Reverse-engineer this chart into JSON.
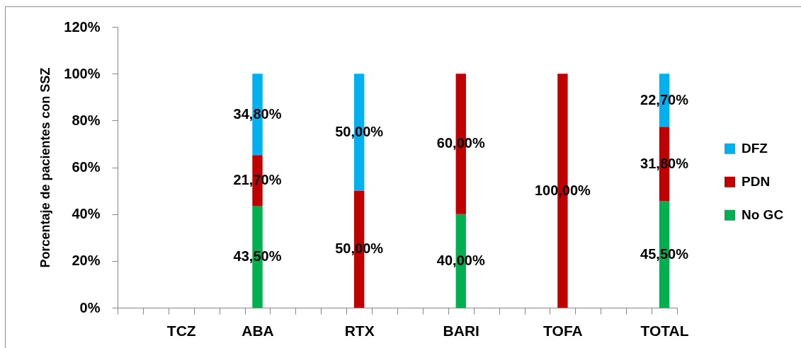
{
  "chart_data": {
    "type": "bar",
    "stacked": true,
    "ylabel": "Porcentaje de pacientes con SSZ",
    "categories": [
      null,
      null,
      "TCZ",
      null,
      null,
      "ABA",
      null,
      null,
      null,
      "RTX",
      null,
      null,
      null,
      "BARI",
      null,
      null,
      null,
      "TOFA",
      null,
      null,
      null,
      "TOTAL"
    ],
    "series": [
      {
        "name": "No GC",
        "color": "#00b050",
        "values": [
          null,
          null,
          null,
          null,
          null,
          43.5,
          null,
          null,
          null,
          null,
          null,
          null,
          null,
          40,
          null,
          null,
          null,
          null,
          null,
          null,
          null,
          45.5
        ],
        "value_labels": [
          null,
          null,
          null,
          null,
          null,
          "43,50%",
          null,
          null,
          null,
          null,
          null,
          null,
          null,
          "40,00%",
          null,
          null,
          null,
          null,
          null,
          null,
          null,
          "45,50%"
        ]
      },
      {
        "name": "PDN",
        "color": "#c00000",
        "values": [
          null,
          null,
          null,
          null,
          null,
          21.7,
          null,
          null,
          null,
          50,
          null,
          null,
          null,
          60,
          null,
          null,
          null,
          100,
          null,
          null,
          null,
          31.8
        ],
        "value_labels": [
          null,
          null,
          null,
          null,
          null,
          "21,70%",
          null,
          null,
          null,
          "50,00%",
          null,
          null,
          null,
          "60,00%",
          null,
          null,
          null,
          "100,00%",
          null,
          null,
          null,
          "31,80%"
        ]
      },
      {
        "name": "DFZ",
        "color": "#00b0f0",
        "values": [
          null,
          null,
          null,
          null,
          null,
          34.8,
          null,
          null,
          null,
          50,
          null,
          null,
          null,
          null,
          null,
          null,
          null,
          null,
          null,
          null,
          null,
          22.7
        ],
        "value_labels": [
          null,
          null,
          null,
          null,
          null,
          "34,80%",
          null,
          null,
          null,
          "50,00%",
          null,
          null,
          null,
          null,
          null,
          null,
          null,
          null,
          null,
          null,
          null,
          "22,70%"
        ]
      }
    ],
    "ylim": [
      0,
      120
    ],
    "yticks": [
      {
        "value": 0,
        "label": "0%"
      },
      {
        "value": 20,
        "label": "20%"
      },
      {
        "value": 40,
        "label": "40%"
      },
      {
        "value": 60,
        "label": "60%"
      },
      {
        "value": 80,
        "label": "80%"
      },
      {
        "value": 100,
        "label": "100%"
      },
      {
        "value": 120,
        "label": "120%"
      }
    ],
    "legend": "right"
  }
}
